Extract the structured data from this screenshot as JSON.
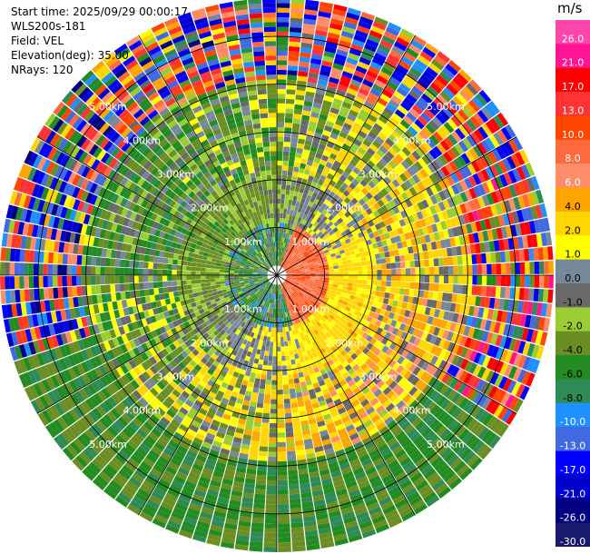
{
  "header": {
    "start_time": "Start time: 2025/09/29 00:00:17",
    "instrument": "WLS200s-181",
    "field": "Field: VEL",
    "elevation": "Elevation(deg): 35.00",
    "nrays": "NRays: 120"
  },
  "chart_data": {
    "type": "heatmap",
    "projection": "polar",
    "field": "VEL",
    "units": "m/s",
    "range_rings_km": [
      1.0,
      2.0,
      3.0,
      4.0,
      5.0
    ],
    "range_ring_labels": [
      "1.00km",
      "2.00km",
      "3.00km",
      "4.00km",
      "5.00km"
    ],
    "max_range_km": 5.8,
    "nrays": 120,
    "elevation_deg": 35.0,
    "colorbar": {
      "label": "m/s",
      "vmin": -30.0,
      "vmax": 30.0,
      "tick_labels": [
        "26.0",
        "21.0",
        "17.0",
        "13.0",
        "10.0",
        "8.0",
        "6.0",
        "4.0",
        "2.0",
        "1.0",
        "0.0",
        "-1.0",
        "-2.0",
        "-4.0",
        "-6.0",
        "-8.0",
        "-10.0",
        "-13.0",
        "-17.0",
        "-21.0",
        "-26.0",
        "-30.0"
      ],
      "colors": [
        "#ff44aa",
        "#ff1493",
        "#ff0000",
        "#ff3333",
        "#ff4500",
        "#ff6a3c",
        "#ff8c69",
        "#ffa500",
        "#ffd700",
        "#ffff00",
        "#778899",
        "#696969",
        "#9acd32",
        "#6b8e23",
        "#228b22",
        "#2e8b57",
        "#1e90ff",
        "#4169e1",
        "#0000ff",
        "#0000cd",
        "#000080",
        "#191970"
      ]
    }
  }
}
